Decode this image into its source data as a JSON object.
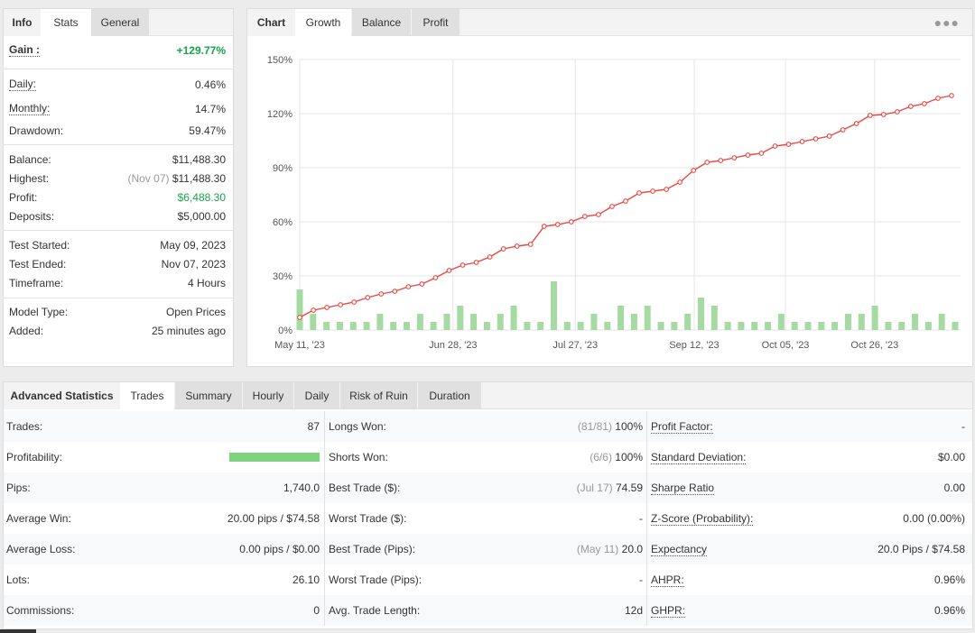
{
  "info": {
    "tabs": [
      "Info",
      "Stats",
      "General"
    ],
    "gain": {
      "label": "Gain :",
      "value": "+129.77%"
    },
    "daily": {
      "label": "Daily:",
      "value": "0.46%"
    },
    "monthly": {
      "label": "Monthly:",
      "value": "14.7%"
    },
    "drawdown": {
      "label": "Drawdown:",
      "value": "59.47%"
    },
    "balance": {
      "label": "Balance:",
      "value": "$11,488.30"
    },
    "highest": {
      "label": "Highest:",
      "date": "(Nov 07)",
      "value": "$11,488.30"
    },
    "profit": {
      "label": "Profit:",
      "value": "$6,488.30"
    },
    "deposits": {
      "label": "Deposits:",
      "value": "$5,000.00"
    },
    "test_started": {
      "label": "Test Started:",
      "value": "May 09, 2023"
    },
    "test_ended": {
      "label": "Test Ended:",
      "value": "Nov 07, 2023"
    },
    "timeframe": {
      "label": "Timeframe:",
      "value": "4 Hours"
    },
    "model_type": {
      "label": "Model Type:",
      "value": "Open Prices"
    },
    "added": {
      "label": "Added:",
      "value": "25 minutes ago"
    }
  },
  "chart_panel": {
    "tabs": [
      "Chart",
      "Growth",
      "Balance",
      "Profit"
    ],
    "menu_icon": "more-dots-icon"
  },
  "chart_data": {
    "type": "line",
    "x_tick_labels": [
      "May 11, '23",
      "Jun 28, '23",
      "Jul 27, '23",
      "Sep 12, '23",
      "Oct 05, '23",
      "Oct 26, '23"
    ],
    "y_tick_labels": [
      "0%",
      "30%",
      "60%",
      "90%",
      "120%",
      "150%"
    ],
    "ylim": [
      0,
      150
    ],
    "grid": true,
    "series": [
      {
        "type": "line",
        "color": "#e8473f",
        "values": [
          7,
          11,
          12.5,
          14,
          15.5,
          18,
          20,
          21.5,
          24,
          25.5,
          29,
          33,
          36,
          37.5,
          40.5,
          45,
          46.5,
          47.5,
          57.5,
          58.5,
          60,
          63,
          64,
          68.5,
          71.5,
          76,
          77,
          78,
          82,
          88.5,
          93,
          94,
          95.5,
          97,
          98,
          102,
          103,
          104.5,
          106,
          107.5,
          111,
          114.5,
          119,
          119.5,
          121,
          124,
          125.5,
          128.5,
          130
        ]
      },
      {
        "type": "bar",
        "color": "#a5dba2",
        "values": [
          22.5,
          9,
          4.5,
          4.5,
          4.5,
          4.5,
          9,
          4.5,
          4.5,
          9,
          4.5,
          9,
          13.5,
          9,
          4.5,
          9,
          13.5,
          4.5,
          4.5,
          27,
          4.5,
          4.5,
          9,
          4.5,
          13.5,
          9,
          13.5,
          4.5,
          4.5,
          9,
          18,
          13.5,
          4.5,
          4.5,
          4.5,
          4.5,
          9,
          4.5,
          4.5,
          4.5,
          4.5,
          9,
          9,
          13.5,
          4.5,
          4.5,
          9,
          4.5,
          9,
          4.5
        ]
      }
    ]
  },
  "advanced": {
    "tabs": [
      "Advanced Statistics",
      "Trades",
      "Summary",
      "Hourly",
      "Daily",
      "Risk of Ruin",
      "Duration"
    ],
    "profitability_fraction": 1.0,
    "rows": [
      {
        "c1l": "Trades:",
        "c1v": "87",
        "c2l": "Longs Won:",
        "c2m": "(81/81)",
        "c2v": "100%",
        "c3l": "Profit Factor:",
        "c3v": "-"
      },
      {
        "c1l": "Profitability:",
        "c1v": "",
        "c2l": "Shorts Won:",
        "c2m": "(6/6)",
        "c2v": "100%",
        "c3l": "Standard Deviation:",
        "c3v": "$0.00"
      },
      {
        "c1l": "Pips:",
        "c1v": "1,740.0",
        "c2l": "Best Trade ($):",
        "c2m": "(Jul 17)",
        "c2v": "74.59",
        "c3l": "Sharpe Ratio",
        "c3v": "0.00"
      },
      {
        "c1l": "Average Win:",
        "c1v": "20.00 pips / $74.58",
        "c2l": "Worst Trade ($):",
        "c2m": "",
        "c2v": "-",
        "c3l": "Z-Score (Probability):",
        "c3v": "0.00 (0.00%)"
      },
      {
        "c1l": "Average Loss:",
        "c1v": "0.00 pips / $0.00",
        "c2l": "Best Trade (Pips):",
        "c2m": "(May 11)",
        "c2v": "20.0",
        "c3l": "Expectancy",
        "c3v": "20.0 Pips / $74.58"
      },
      {
        "c1l": "Lots:",
        "c1v": "26.10",
        "c2l": "Worst Trade (Pips):",
        "c2m": "",
        "c2v": "-",
        "c3l": "AHPR:",
        "c3v": "0.96%"
      },
      {
        "c1l": "Commissions:",
        "c1v": "0",
        "c2l": "Avg. Trade Length:",
        "c2m": "",
        "c2v": "12d",
        "c3l": "GHPR:",
        "c3v": "0.96%"
      }
    ]
  }
}
